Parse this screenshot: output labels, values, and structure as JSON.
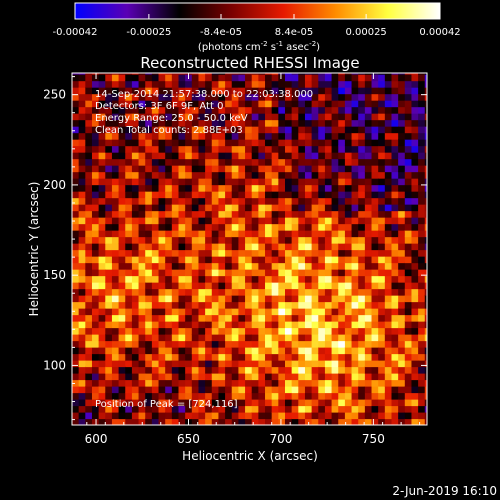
{
  "colorbar": {
    "ticks": [
      "-0.00042",
      "-0.00025",
      "-8.4e-05",
      "8.4e-05",
      "0.00025",
      "0.00042"
    ],
    "tick_values": [
      -0.00042,
      -0.00025,
      -8.4e-05,
      8.4e-05,
      0.00025,
      0.00042
    ],
    "range": [
      -0.00042,
      0.00042
    ],
    "units": {
      "a": "(photons cm",
      "a_sup": "-2",
      "b": " s",
      "b_sup": "-1",
      "c": " asec",
      "c_sup": "-2",
      "d": ")"
    },
    "colors": [
      "#0000ff",
      "#5a00b4",
      "#000000",
      "#7a0000",
      "#e61a00",
      "#ff8c00",
      "#ffff40",
      "#ffffff"
    ]
  },
  "chart_data": {
    "type": "heatmap",
    "title": "Reconstructed RHESSI Image",
    "xlabel": "Heliocentric X (arcsec)",
    "ylabel": "Heliocentric Y (arcsec)",
    "xlim": [
      587,
      779
    ],
    "ylim": [
      67,
      262
    ],
    "x_ticks": [
      600,
      650,
      700,
      750
    ],
    "y_ticks": [
      100,
      150,
      200,
      250
    ],
    "annotations": {
      "time": "14-Sep-2014 21:57:38.000 to 22:03:38.000",
      "detectors": "Detectors: 3F 6F 9F, Att 0",
      "energy": "Energy Range: 25.0 - 50.0 keV",
      "clean": "Clean    Total counts: 2.88E+03",
      "peak": "Position of Peak = [724,116]"
    },
    "peak_position": [
      724,
      116
    ]
  },
  "footer": {
    "date": "2-Jun-2019 16:10"
  }
}
